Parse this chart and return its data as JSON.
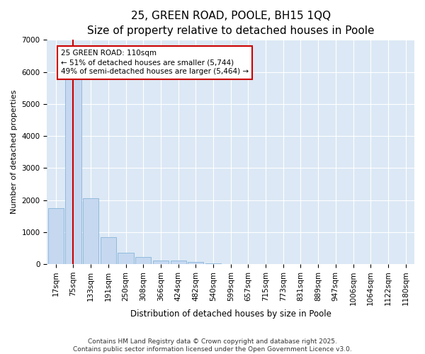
{
  "title": "25, GREEN ROAD, POOLE, BH15 1QQ",
  "subtitle": "Size of property relative to detached houses in Poole",
  "xlabel": "Distribution of detached houses by size in Poole",
  "ylabel": "Number of detached properties",
  "categories": [
    "17sqm",
    "75sqm",
    "133sqm",
    "191sqm",
    "250sqm",
    "308sqm",
    "366sqm",
    "424sqm",
    "482sqm",
    "540sqm",
    "599sqm",
    "657sqm",
    "715sqm",
    "773sqm",
    "831sqm",
    "889sqm",
    "947sqm",
    "1006sqm",
    "1064sqm",
    "1122sqm",
    "1180sqm"
  ],
  "values": [
    1750,
    5800,
    2050,
    830,
    360,
    230,
    110,
    100,
    70,
    30,
    5,
    2,
    1,
    0,
    0,
    0,
    0,
    0,
    0,
    0,
    0
  ],
  "bar_color": "#c5d8f0",
  "bar_edge_color": "#88b4d8",
  "vline_x": 1,
  "vline_color": "#cc0000",
  "annotation_text": "25 GREEN ROAD: 110sqm\n← 51% of detached houses are smaller (5,744)\n49% of semi-detached houses are larger (5,464) →",
  "annotation_box_facecolor": "#ffffff",
  "annotation_box_edgecolor": "#cc0000",
  "ylim": [
    0,
    7000
  ],
  "yticks": [
    0,
    1000,
    2000,
    3000,
    4000,
    5000,
    6000,
    7000
  ],
  "fig_bg_color": "#ffffff",
  "plot_bg_color": "#dce8f5",
  "grid_color": "#ffffff",
  "footer_line1": "Contains HM Land Registry data © Crown copyright and database right 2025.",
  "footer_line2": "Contains public sector information licensed under the Open Government Licence v3.0.",
  "title_fontsize": 11,
  "subtitle_fontsize": 9.5,
  "axis_label_fontsize": 8,
  "tick_fontsize": 7.5,
  "footer_fontsize": 6.5,
  "annotation_fontsize": 7.5
}
